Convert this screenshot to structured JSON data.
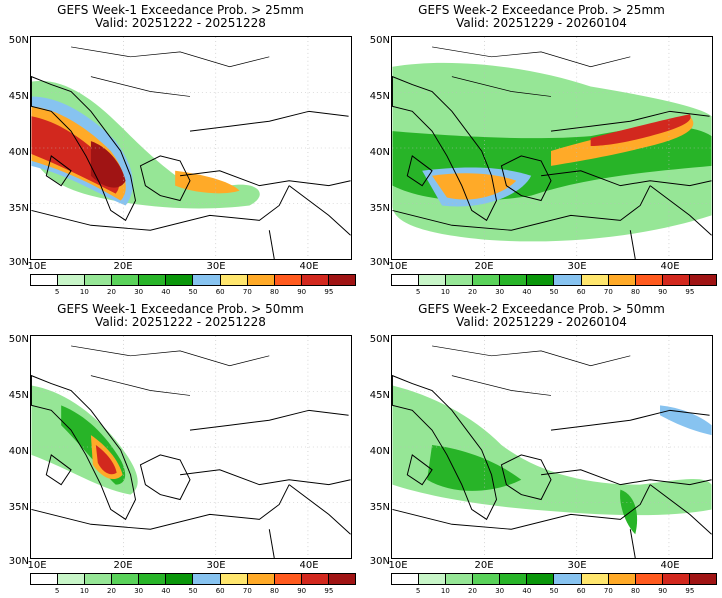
{
  "panels": [
    {
      "line1": "GEFS Week-1 Exceedance Prob. > 25mm",
      "line2": "Valid: 20251222 - 20251228"
    },
    {
      "line1": "GEFS Week-2 Exceedance Prob. > 25mm",
      "line2": "Valid: 20251229 - 20260104"
    },
    {
      "line1": "GEFS Week-1 Exceedance Prob. > 50mm",
      "line2": "Valid: 20251222 - 20251228"
    },
    {
      "line1": "GEFS Week-2 Exceedance Prob. > 50mm",
      "line2": "Valid: 20251229 - 20260104"
    }
  ],
  "axes": {
    "lat_labels": [
      "50N",
      "45N",
      "40N",
      "35N",
      "30N"
    ],
    "lon_labels": [
      "10E",
      "20E",
      "30E",
      "40E"
    ]
  },
  "colorbar": {
    "labels": [
      "5",
      "10",
      "20",
      "30",
      "40",
      "50",
      "60",
      "70",
      "80",
      "90",
      "95"
    ],
    "colors": [
      "#ffffff",
      "#c8f5c8",
      "#96e696",
      "#5ad25a",
      "#28b428",
      "#0a960a",
      "#87c3f0",
      "#ffe66e",
      "#ffaa28",
      "#ff5a1e",
      "#d2281e",
      "#a01414"
    ]
  }
}
